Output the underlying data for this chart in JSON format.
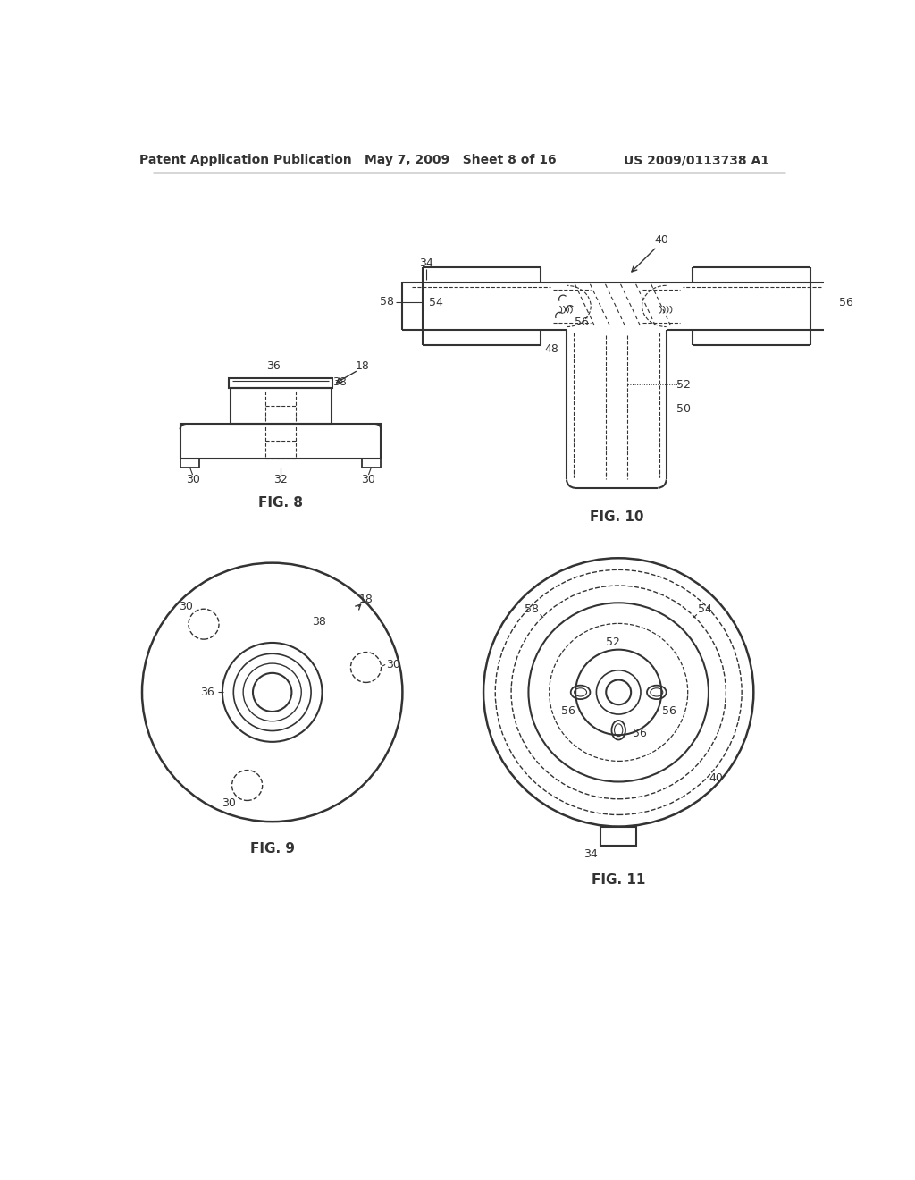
{
  "header_left": "Patent Application Publication",
  "header_mid": "May 7, 2009   Sheet 8 of 16",
  "header_right": "US 2009/0113738 A1",
  "background_color": "#ffffff",
  "line_color": "#333333",
  "fig8_label": "FIG. 8",
  "fig9_label": "FIG. 9",
  "fig10_label": "FIG. 10",
  "fig11_label": "FIG. 11"
}
